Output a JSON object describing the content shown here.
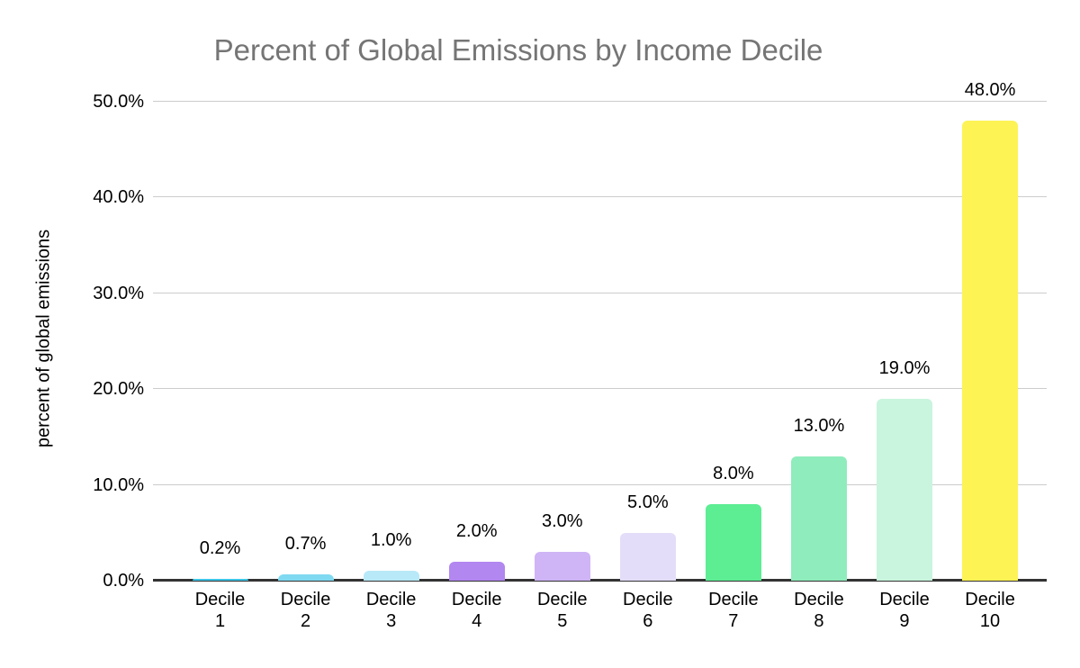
{
  "chart_data": {
    "type": "bar",
    "title": "Percent of Global Emissions by Income Decile",
    "xlabel": "",
    "ylabel": "percent of global emissions",
    "categories": [
      "Decile 1",
      "Decile 2",
      "Decile 3",
      "Decile 4",
      "Decile 5",
      "Decile 6",
      "Decile 7",
      "Decile 8",
      "Decile 9",
      "Decile 10"
    ],
    "values": [
      0.2,
      0.7,
      1.0,
      2.0,
      3.0,
      5.0,
      8.0,
      13.0,
      19.0,
      48.0
    ],
    "data_labels": [
      "0.2%",
      "0.7%",
      "1.0%",
      "2.0%",
      "3.0%",
      "5.0%",
      "8.0%",
      "13.0%",
      "19.0%",
      "48.0%"
    ],
    "bar_colors": [
      "#3dc6e8",
      "#7fd9f1",
      "#b8e9f8",
      "#b287f0",
      "#cfb4f6",
      "#e4ddf9",
      "#5ded93",
      "#8fecbc",
      "#c9f4de",
      "#fdf355"
    ],
    "ylim": [
      0,
      50
    ],
    "yticks": [
      0,
      10,
      20,
      30,
      40,
      50
    ],
    "ytick_labels": [
      "0.0%",
      "10.0%",
      "20.0%",
      "30.0%",
      "40.0%",
      "50.0%"
    ],
    "grid": true,
    "legend_position": "none"
  },
  "styles": {
    "title_color": "#757575",
    "gridline_color": "#cccccc",
    "axis_line_color": "#333333",
    "text_color": "#000000",
    "background_color": "#ffffff"
  }
}
